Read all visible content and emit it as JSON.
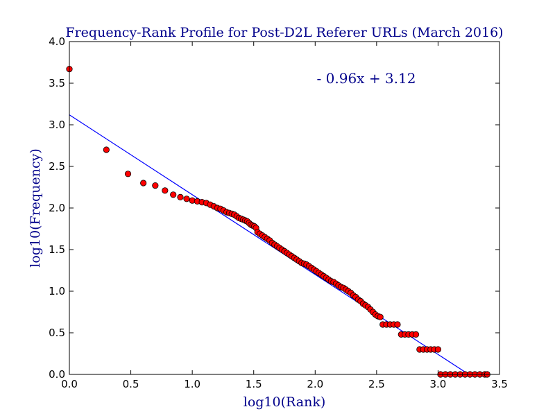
{
  "chart_data": {
    "type": "scatter",
    "title": "Frequency-Rank Profile for Post-D2L Referer URLs (March 2016)",
    "xlabel": "log10(Rank)",
    "ylabel": "log10(Frequency)",
    "xlim": [
      0.0,
      3.5
    ],
    "ylim": [
      0.0,
      4.0
    ],
    "x_ticks": [
      "0.0",
      "0.5",
      "1.0",
      "1.5",
      "2.0",
      "2.5",
      "3.0",
      "3.5"
    ],
    "y_ticks": [
      "0.0",
      "0.5",
      "1.0",
      "1.5",
      "2.0",
      "2.5",
      "3.0",
      "3.5",
      "4.0"
    ],
    "grid": false,
    "annotation": "- 0.96x + 3.12",
    "fit_line": {
      "slope": -0.96,
      "intercept": 3.12
    },
    "colors": {
      "points": "#ff0000",
      "point_edge": "#000000",
      "line": "#0000ff",
      "text": "#00008b"
    },
    "series": [
      {
        "points": [
          [
            0.0,
            3.67
          ],
          [
            0.301,
            2.7
          ],
          [
            0.477,
            2.41
          ],
          [
            0.602,
            2.3
          ],
          [
            0.699,
            2.27
          ],
          [
            0.778,
            2.21
          ],
          [
            0.845,
            2.16
          ],
          [
            0.903,
            2.13
          ],
          [
            0.954,
            2.11
          ],
          [
            1.0,
            2.09
          ],
          [
            1.041,
            2.08
          ],
          [
            1.079,
            2.07
          ],
          [
            1.114,
            2.06
          ],
          [
            1.146,
            2.04
          ],
          [
            1.176,
            2.02
          ],
          [
            1.204,
            2.0
          ],
          [
            1.23,
            1.99
          ],
          [
            1.255,
            1.97
          ],
          [
            1.279,
            1.95
          ],
          [
            1.301,
            1.94
          ],
          [
            1.322,
            1.93
          ],
          [
            1.342,
            1.92
          ],
          [
            1.362,
            1.9
          ],
          [
            1.38,
            1.88
          ],
          [
            1.398,
            1.87
          ],
          [
            1.415,
            1.86
          ],
          [
            1.431,
            1.85
          ],
          [
            1.447,
            1.84
          ],
          [
            1.462,
            1.82
          ],
          [
            1.477,
            1.8
          ],
          [
            1.491,
            1.79
          ],
          [
            1.505,
            1.78
          ],
          [
            1.519,
            1.76
          ],
          [
            1.531,
            1.71
          ],
          [
            1.55,
            1.69
          ],
          [
            1.57,
            1.67
          ],
          [
            1.59,
            1.65
          ],
          [
            1.61,
            1.63
          ],
          [
            1.63,
            1.61
          ],
          [
            1.65,
            1.58
          ],
          [
            1.67,
            1.56
          ],
          [
            1.69,
            1.54
          ],
          [
            1.71,
            1.52
          ],
          [
            1.73,
            1.5
          ],
          [
            1.75,
            1.48
          ],
          [
            1.77,
            1.46
          ],
          [
            1.79,
            1.44
          ],
          [
            1.81,
            1.42
          ],
          [
            1.83,
            1.4
          ],
          [
            1.85,
            1.38
          ],
          [
            1.87,
            1.36
          ],
          [
            1.89,
            1.34
          ],
          [
            1.91,
            1.33
          ],
          [
            1.93,
            1.32
          ],
          [
            1.95,
            1.3
          ],
          [
            1.97,
            1.28
          ],
          [
            1.99,
            1.26
          ],
          [
            2.01,
            1.24
          ],
          [
            2.03,
            1.22
          ],
          [
            2.05,
            1.2
          ],
          [
            2.07,
            1.18
          ],
          [
            2.09,
            1.16
          ],
          [
            2.11,
            1.14
          ],
          [
            2.13,
            1.12
          ],
          [
            2.15,
            1.11
          ],
          [
            2.17,
            1.09
          ],
          [
            2.19,
            1.07
          ],
          [
            2.21,
            1.05
          ],
          [
            2.23,
            1.04
          ],
          [
            2.25,
            1.02
          ],
          [
            2.27,
            1.0
          ],
          [
            2.29,
            0.98
          ],
          [
            2.31,
            0.95
          ],
          [
            2.33,
            0.93
          ],
          [
            2.35,
            0.9
          ],
          [
            2.37,
            0.88
          ],
          [
            2.39,
            0.85
          ],
          [
            2.41,
            0.83
          ],
          [
            2.43,
            0.81
          ],
          [
            2.45,
            0.78
          ],
          [
            2.47,
            0.75
          ],
          [
            2.49,
            0.72
          ],
          [
            2.51,
            0.7
          ],
          [
            2.53,
            0.69
          ],
          [
            2.55,
            0.6
          ],
          [
            2.58,
            0.6
          ],
          [
            2.61,
            0.6
          ],
          [
            2.64,
            0.6
          ],
          [
            2.67,
            0.6
          ],
          [
            2.7,
            0.48
          ],
          [
            2.73,
            0.48
          ],
          [
            2.76,
            0.48
          ],
          [
            2.79,
            0.48
          ],
          [
            2.82,
            0.48
          ],
          [
            2.85,
            0.3
          ],
          [
            2.88,
            0.3
          ],
          [
            2.91,
            0.3
          ],
          [
            2.94,
            0.3
          ],
          [
            2.97,
            0.3
          ],
          [
            3.0,
            0.3
          ],
          [
            3.02,
            0.0
          ],
          [
            3.06,
            0.0
          ],
          [
            3.1,
            0.0
          ],
          [
            3.14,
            0.0
          ],
          [
            3.18,
            0.0
          ],
          [
            3.22,
            0.0
          ],
          [
            3.26,
            0.0
          ],
          [
            3.3,
            0.0
          ],
          [
            3.34,
            0.0
          ],
          [
            3.38,
            0.0
          ],
          [
            3.4,
            0.0
          ]
        ]
      }
    ]
  }
}
